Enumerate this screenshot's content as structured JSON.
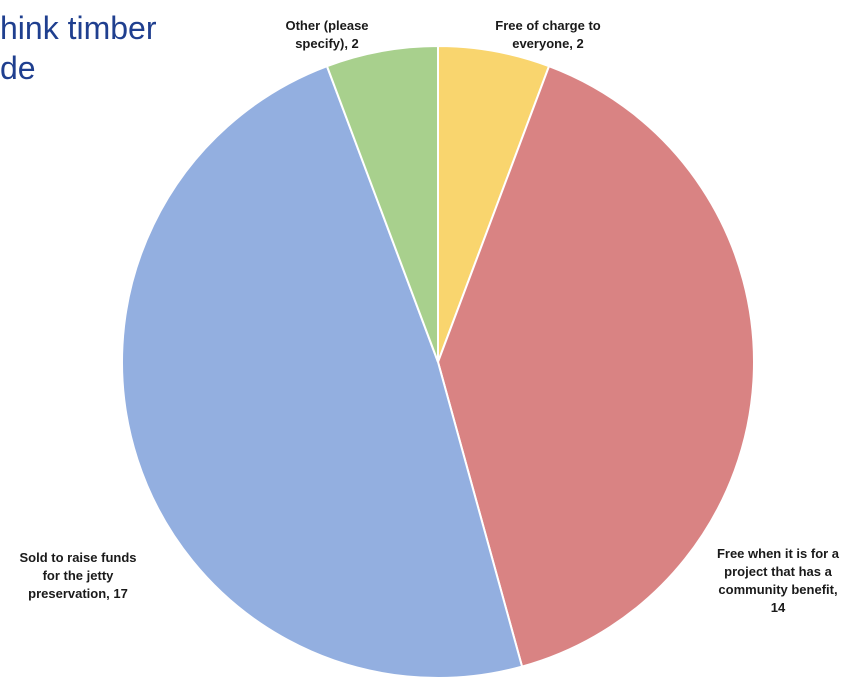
{
  "title_fragment": "hink timber\nde",
  "chart_data": {
    "type": "pie",
    "title": "",
    "slices": [
      {
        "label": [
          "Free of charge to",
          "everyone, 2"
        ],
        "value": 2,
        "color": "#f9d56e"
      },
      {
        "label": [
          "Free when it is for a",
          "project that has a",
          "community benefit,",
          "14"
        ],
        "value": 14,
        "color": "#d98383"
      },
      {
        "label": [
          "Sold to raise funds",
          "for the jetty",
          "preservation, 17"
        ],
        "value": 17,
        "color": "#93afe0"
      },
      {
        "label": [
          "Other (please",
          "specify), 2"
        ],
        "value": 2,
        "color": "#a8d08d"
      }
    ]
  }
}
